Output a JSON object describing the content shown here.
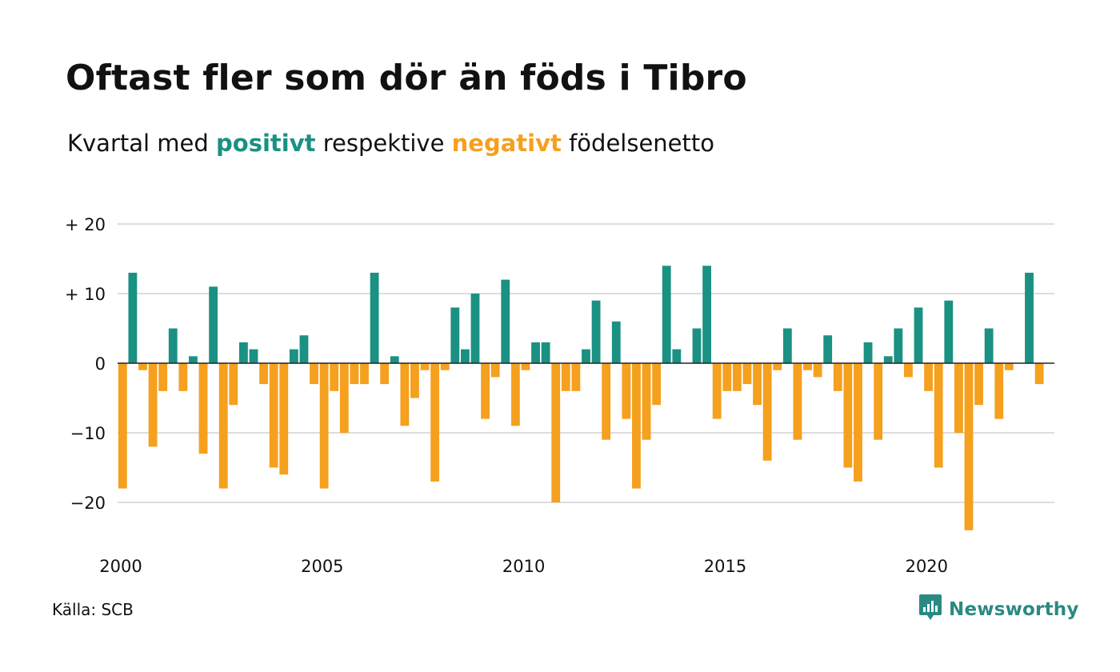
{
  "title": "Oftast fler som dör än föds i Tibro",
  "subtitle": {
    "prefix": "Kvartal med ",
    "positive_word": "positivt",
    "middle": " respektive ",
    "negative_word": "negativt",
    "suffix": " födelsenetto"
  },
  "source": "Källa: SCB",
  "brand": {
    "name": "Newsworthy",
    "icon": "newsworthy-logo-icon"
  },
  "colors": {
    "positive": "#1a9183",
    "negative": "#f5a01e",
    "grid": "#dddddd",
    "zero": "#222222"
  },
  "chart_data": {
    "type": "bar",
    "title": "Oftast fler som dör än föds i Tibro",
    "subtitle": "Kvartal med positivt respektive negativt födelsenetto",
    "xlabel": "",
    "ylabel": "",
    "x_ticks": [
      {
        "label": "2000",
        "value": 2000
      },
      {
        "label": "2005",
        "value": 2005
      },
      {
        "label": "2010",
        "value": 2010
      },
      {
        "label": "2015",
        "value": 2015
      },
      {
        "label": "2020",
        "value": 2020
      }
    ],
    "y_ticks": [
      {
        "label": "+ 20",
        "value": 20
      },
      {
        "label": "+ 10",
        "value": 10
      },
      {
        "label": "0",
        "value": 0
      },
      {
        "label": "−10",
        "value": -10
      },
      {
        "label": "−20",
        "value": -20
      }
    ],
    "ylim": [
      -26,
      21
    ],
    "xlim": [
      2000,
      2023.25
    ],
    "grid": true,
    "series": [
      {
        "x_start": 2000,
        "x_step": 0.25,
        "values": [
          -18,
          13,
          -1,
          -12,
          -4,
          5,
          -4,
          1,
          -13,
          11,
          -18,
          -6,
          3,
          2,
          -3,
          -15,
          -16,
          2,
          4,
          -3,
          -18,
          -4,
          -10,
          -3,
          -3,
          13,
          -3,
          1,
          -9,
          -5,
          -1,
          -17,
          -1,
          8,
          2,
          10,
          -8,
          -2,
          12,
          -9,
          -1,
          3,
          3,
          -20,
          -4,
          -4,
          2,
          9,
          -11,
          6,
          -8,
          -18,
          -11,
          -6,
          14,
          2,
          0,
          5,
          14,
          -8,
          -4,
          -4,
          -3,
          -6,
          -14,
          -1,
          5,
          -11,
          -1,
          -2,
          4,
          -4,
          -15,
          -17,
          3,
          -11,
          1,
          5,
          -2,
          8,
          -4,
          -15,
          9,
          -10,
          -24,
          -6,
          5,
          -8,
          -1,
          0,
          13,
          -3
        ]
      }
    ]
  }
}
